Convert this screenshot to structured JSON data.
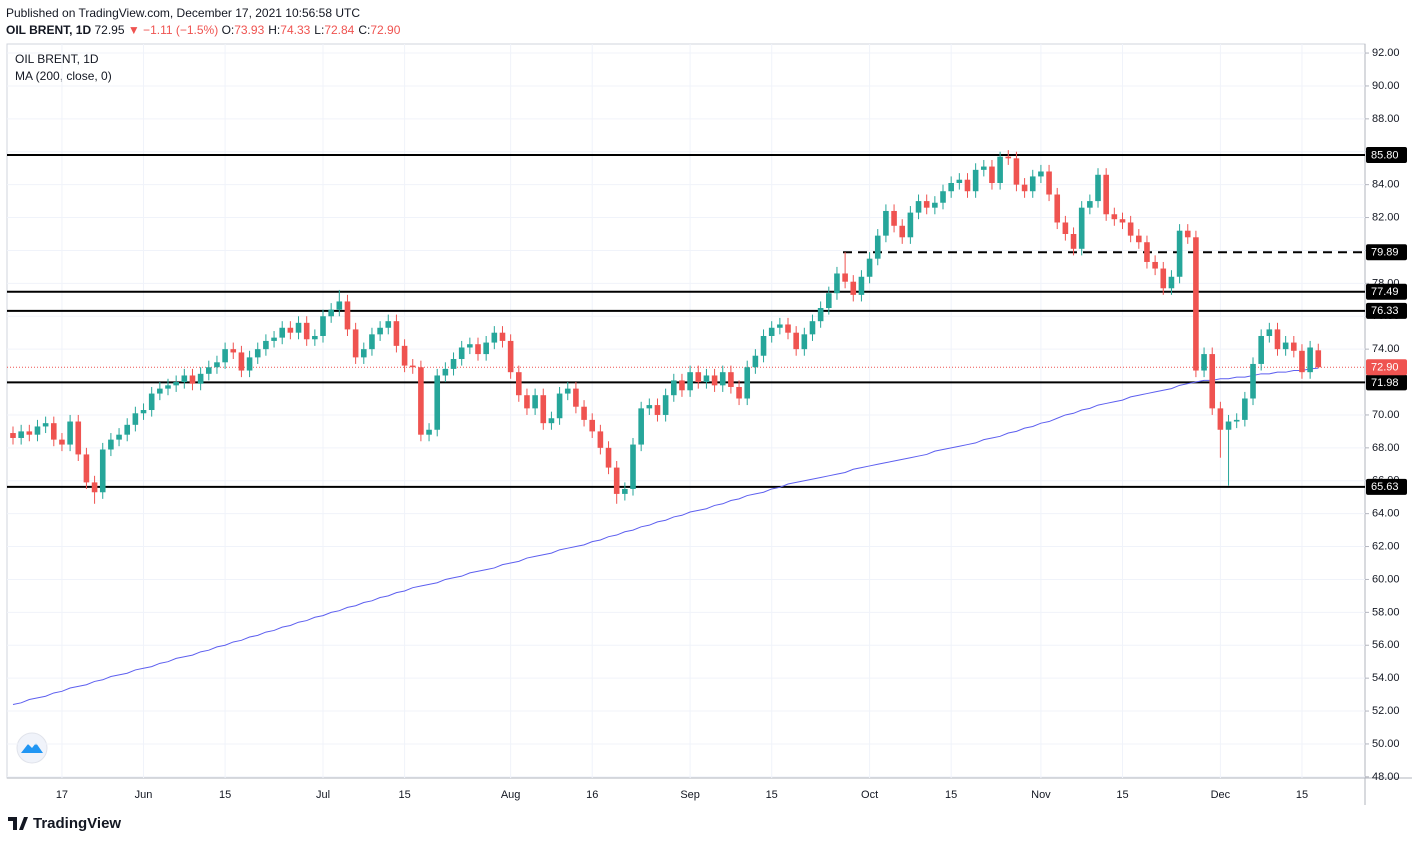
{
  "publisher": "Published on TradingView.com, December 17, 2021 10:56:58 UTC",
  "legend": {
    "price": "72.95",
    "change": "▼ −1.11 (−1.5%)",
    "items": [
      {
        "key": "O:",
        "value": "73.93"
      },
      {
        "key": "H:",
        "value": "74.33"
      },
      {
        "key": "L:",
        "value": "72.84"
      },
      {
        "key": "C:",
        "value": "72.90"
      }
    ]
  },
  "footer": "TradingView",
  "chart_data": {
    "type": "candlestick",
    "title": "OIL BRENT, 1D",
    "up_color": "#26a69a",
    "down_color": "#ef5350",
    "categories": [
      null,
      null,
      null,
      null,
      null,
      null,
      "17",
      null,
      null,
      null,
      null,
      null,
      null,
      null,
      null,
      null,
      "Jun",
      null,
      null,
      null,
      null,
      null,
      null,
      null,
      null,
      null,
      "15",
      null,
      null,
      null,
      null,
      null,
      null,
      null,
      null,
      null,
      null,
      null,
      "Jul",
      null,
      null,
      null,
      null,
      null,
      null,
      null,
      null,
      null,
      "15",
      null,
      null,
      null,
      null,
      null,
      null,
      null,
      null,
      null,
      null,
      null,
      null,
      "Aug",
      null,
      null,
      null,
      null,
      null,
      null,
      null,
      null,
      null,
      "16",
      null,
      null,
      null,
      null,
      null,
      null,
      null,
      null,
      null,
      null,
      null,
      "Sep",
      null,
      null,
      null,
      null,
      null,
      null,
      null,
      null,
      null,
      "15",
      null,
      null,
      null,
      null,
      null,
      null,
      null,
      null,
      null,
      null,
      null,
      "Oct",
      null,
      null,
      null,
      null,
      null,
      null,
      null,
      null,
      null,
      "15",
      null,
      null,
      null,
      null,
      null,
      null,
      null,
      null,
      null,
      null,
      "Nov",
      null,
      null,
      null,
      null,
      null,
      null,
      null,
      null,
      null,
      "15",
      null,
      null,
      null,
      null,
      null,
      null,
      null,
      null,
      null,
      null,
      null,
      "Dec",
      null,
      null,
      null,
      null,
      null,
      null,
      null,
      null,
      null,
      "15",
      null,
      null
    ],
    "open": [
      68.9,
      68.6,
      69.0,
      68.8,
      69.3,
      69.5,
      68.5,
      68.2,
      69.6,
      67.6,
      65.9,
      65.3,
      67.9,
      68.5,
      68.8,
      69.4,
      70.1,
      70.3,
      71.3,
      71.6,
      71.8,
      72.0,
      72.4,
      71.9,
      72.5,
      72.9,
      73.2,
      74.0,
      73.8,
      72.7,
      73.5,
      74.0,
      74.5,
      74.7,
      75.3,
      75.0,
      75.6,
      74.6,
      74.8,
      76.0,
      76.4,
      76.9,
      75.2,
      73.5,
      74.0,
      74.9,
      75.3,
      75.7,
      74.2,
      73.0,
      72.9,
      68.8,
      69.1,
      72.4,
      72.8,
      73.4,
      74.1,
      74.3,
      73.7,
      74.4,
      75.0,
      74.5,
      72.6,
      71.2,
      70.4,
      71.2,
      69.5,
      69.8,
      71.3,
      71.6,
      70.5,
      69.7,
      69.0,
      68.0,
      66.8,
      65.2,
      65.5,
      68.2,
      70.4,
      70.6,
      70.0,
      71.2,
      72.1,
      71.5,
      72.6,
      72.0,
      72.4,
      71.8,
      72.6,
      71.7,
      71.0,
      72.9,
      73.6,
      74.8,
      75.3,
      75.5,
      75.0,
      74.0,
      74.9,
      75.7,
      76.5,
      77.4,
      78.6,
      78.1,
      77.3,
      78.4,
      79.5,
      80.9,
      82.4,
      81.5,
      80.8,
      82.3,
      83.0,
      82.6,
      82.9,
      83.6,
      84.1,
      84.3,
      83.6,
      84.9,
      85.1,
      84.1,
      85.7,
      85.6,
      84.0,
      83.6,
      84.5,
      84.8,
      83.4,
      81.7,
      81.0,
      80.1,
      82.6,
      83.0,
      84.6,
      82.2,
      81.9,
      81.7,
      80.9,
      80.5,
      79.3,
      78.9,
      77.7,
      78.4,
      81.2,
      80.8,
      72.7,
      73.7,
      70.4,
      69.1,
      69.6,
      69.7,
      71.0,
      73.1,
      74.8,
      75.2,
      74.0,
      74.4,
      73.9,
      72.6,
      73.93
    ],
    "high": [
      69.3,
      69.4,
      69.4,
      69.7,
      69.9,
      69.9,
      68.9,
      70.0,
      70.0,
      68.0,
      66.3,
      68.3,
      68.9,
      69.2,
      69.8,
      70.5,
      70.7,
      71.7,
      72.0,
      72.2,
      72.4,
      72.8,
      72.8,
      72.9,
      73.3,
      73.6,
      74.4,
      74.4,
      74.2,
      73.9,
      74.4,
      74.9,
      75.1,
      75.7,
      75.7,
      76.0,
      76.0,
      75.2,
      76.4,
      76.8,
      77.6,
      77.3,
      75.6,
      74.4,
      75.3,
      75.7,
      76.1,
      76.1,
      74.6,
      73.4,
      73.3,
      69.5,
      72.8,
      73.2,
      73.8,
      74.5,
      74.7,
      74.7,
      74.8,
      75.4,
      75.4,
      74.9,
      73.0,
      71.6,
      71.6,
      71.6,
      70.2,
      71.7,
      72.0,
      72.0,
      70.9,
      70.1,
      69.4,
      68.4,
      67.2,
      65.9,
      68.6,
      70.8,
      71.0,
      71.0,
      71.6,
      72.5,
      72.5,
      73.0,
      73.0,
      72.8,
      72.8,
      73.0,
      73.0,
      72.1,
      73.3,
      74.0,
      75.2,
      75.7,
      75.9,
      75.9,
      75.4,
      75.3,
      76.1,
      76.9,
      77.8,
      79.0,
      79.9,
      78.5,
      78.8,
      79.9,
      81.3,
      82.8,
      82.8,
      81.9,
      82.7,
      83.4,
      83.4,
      83.3,
      84.0,
      84.5,
      84.7,
      84.7,
      85.3,
      85.5,
      85.5,
      86.0,
      86.1,
      86.0,
      84.4,
      84.9,
      85.2,
      85.2,
      83.8,
      82.1,
      81.4,
      83.0,
      83.4,
      85.0,
      85.0,
      82.6,
      82.3,
      82.1,
      81.3,
      80.9,
      79.7,
      79.3,
      78.8,
      81.6,
      81.6,
      81.2,
      74.1,
      74.1,
      70.8,
      70.0,
      70.1,
      71.4,
      73.5,
      75.2,
      75.6,
      75.6,
      74.8,
      74.8,
      74.3,
      74.5,
      74.33
    ],
    "low": [
      68.2,
      68.2,
      68.4,
      68.4,
      68.9,
      68.1,
      67.8,
      67.8,
      67.2,
      65.5,
      64.6,
      64.9,
      67.5,
      68.1,
      68.4,
      69.0,
      69.7,
      69.9,
      70.9,
      71.2,
      71.4,
      71.6,
      71.5,
      71.5,
      72.1,
      72.5,
      72.8,
      73.4,
      72.3,
      72.3,
      73.1,
      73.6,
      74.1,
      74.3,
      74.6,
      74.6,
      74.2,
      74.2,
      74.4,
      75.6,
      76.0,
      74.8,
      73.1,
      73.1,
      73.6,
      74.5,
      74.9,
      73.8,
      72.6,
      72.5,
      68.4,
      68.4,
      68.7,
      72.0,
      72.4,
      73.0,
      73.7,
      73.3,
      73.3,
      74.0,
      74.1,
      72.2,
      70.8,
      70.0,
      70.0,
      69.1,
      69.1,
      69.4,
      70.9,
      70.1,
      69.3,
      68.6,
      67.6,
      66.4,
      64.6,
      64.8,
      65.1,
      67.8,
      70.0,
      69.6,
      69.6,
      70.8,
      71.1,
      71.1,
      71.6,
      71.6,
      71.4,
      71.4,
      71.3,
      70.6,
      70.6,
      72.5,
      73.2,
      74.4,
      74.9,
      74.6,
      73.6,
      73.6,
      74.5,
      75.3,
      76.1,
      77.0,
      77.7,
      76.9,
      76.9,
      78.0,
      79.1,
      80.5,
      81.1,
      80.4,
      80.4,
      81.9,
      82.2,
      82.2,
      82.5,
      83.2,
      83.7,
      83.2,
      83.2,
      84.5,
      83.7,
      83.7,
      85.2,
      83.6,
      83.2,
      83.2,
      84.1,
      83.0,
      81.3,
      80.6,
      79.7,
      79.7,
      82.2,
      82.6,
      81.8,
      81.5,
      81.3,
      80.5,
      80.1,
      78.9,
      78.5,
      77.3,
      77.3,
      78.0,
      80.4,
      72.3,
      72.3,
      70.0,
      67.4,
      65.7,
      69.2,
      69.3,
      70.6,
      72.7,
      74.4,
      73.6,
      73.6,
      73.5,
      72.2,
      72.2,
      72.84
    ],
    "close": [
      68.6,
      69.0,
      68.8,
      69.3,
      69.5,
      68.5,
      68.2,
      69.6,
      67.6,
      65.9,
      65.3,
      67.9,
      68.5,
      68.8,
      69.4,
      70.1,
      70.3,
      71.3,
      71.6,
      71.8,
      72.0,
      72.4,
      71.9,
      72.5,
      72.9,
      73.2,
      74.0,
      73.8,
      72.7,
      73.5,
      74.0,
      74.5,
      74.7,
      75.3,
      75.0,
      75.6,
      74.6,
      74.8,
      76.0,
      76.4,
      76.9,
      75.2,
      73.5,
      74.0,
      74.9,
      75.3,
      75.7,
      74.2,
      73.0,
      72.9,
      68.8,
      69.1,
      72.4,
      72.8,
      73.4,
      74.1,
      74.3,
      73.7,
      74.4,
      75.0,
      74.5,
      72.6,
      71.2,
      70.4,
      71.2,
      69.5,
      69.8,
      71.3,
      71.6,
      70.5,
      69.7,
      69.0,
      68.0,
      66.8,
      65.2,
      65.5,
      68.2,
      70.4,
      70.6,
      70.0,
      71.2,
      72.1,
      71.5,
      72.6,
      72.0,
      72.4,
      71.8,
      72.6,
      71.7,
      71.0,
      72.9,
      73.6,
      74.8,
      75.3,
      75.5,
      75.0,
      74.0,
      74.9,
      75.7,
      76.5,
      77.4,
      78.6,
      78.1,
      77.3,
      78.4,
      79.5,
      80.9,
      82.4,
      81.5,
      80.8,
      82.3,
      83.0,
      82.6,
      82.9,
      83.6,
      84.1,
      84.3,
      83.6,
      84.9,
      85.1,
      84.1,
      85.7,
      85.6,
      84.0,
      83.6,
      84.5,
      84.8,
      83.4,
      81.7,
      81.0,
      80.1,
      82.6,
      83.0,
      84.6,
      82.2,
      81.9,
      81.7,
      80.9,
      80.5,
      79.3,
      78.9,
      77.7,
      78.4,
      81.2,
      80.8,
      72.7,
      73.7,
      70.4,
      69.1,
      69.6,
      69.7,
      71.0,
      73.1,
      74.8,
      75.2,
      74.0,
      74.4,
      73.9,
      72.6,
      74.1,
      72.9
    ],
    "series": [
      {
        "name": "MA (200, close, 0)",
        "color": "#5d5fef",
        "values": [
          52.4,
          52.5,
          52.7,
          52.8,
          52.9,
          53.1,
          53.2,
          53.4,
          53.5,
          53.6,
          53.8,
          53.9,
          54.1,
          54.2,
          54.3,
          54.5,
          54.6,
          54.7,
          54.9,
          55.0,
          55.2,
          55.3,
          55.4,
          55.6,
          55.7,
          55.9,
          56.0,
          56.2,
          56.3,
          56.5,
          56.6,
          56.8,
          56.9,
          57.1,
          57.2,
          57.4,
          57.5,
          57.7,
          57.8,
          58.0,
          58.1,
          58.3,
          58.4,
          58.6,
          58.7,
          58.9,
          59.0,
          59.2,
          59.3,
          59.5,
          59.6,
          59.7,
          59.8,
          60.0,
          60.1,
          60.2,
          60.4,
          60.5,
          60.6,
          60.7,
          60.9,
          61.0,
          61.1,
          61.3,
          61.4,
          61.5,
          61.6,
          61.8,
          61.9,
          62.0,
          62.1,
          62.3,
          62.4,
          62.6,
          62.7,
          62.9,
          63.0,
          63.2,
          63.3,
          63.5,
          63.6,
          63.8,
          63.9,
          64.1,
          64.2,
          64.3,
          64.5,
          64.6,
          64.8,
          64.9,
          65.1,
          65.2,
          65.3,
          65.5,
          65.6,
          65.8,
          65.9,
          66.0,
          66.1,
          66.2,
          66.3,
          66.4,
          66.5,
          66.7,
          66.8,
          66.9,
          67.0,
          67.1,
          67.2,
          67.3,
          67.4,
          67.5,
          67.6,
          67.8,
          67.9,
          68.0,
          68.1,
          68.2,
          68.3,
          68.5,
          68.6,
          68.7,
          68.9,
          69.0,
          69.2,
          69.3,
          69.5,
          69.6,
          69.8,
          70.0,
          70.1,
          70.3,
          70.4,
          70.6,
          70.7,
          70.8,
          70.9,
          71.1,
          71.2,
          71.3,
          71.4,
          71.5,
          71.6,
          71.8,
          71.9,
          72.0,
          72.1,
          72.1,
          72.2,
          72.2,
          72.3,
          72.3,
          72.4,
          72.5,
          72.5,
          72.6,
          72.6,
          72.7,
          72.7,
          72.8,
          72.85
        ]
      }
    ],
    "ylim": [
      47.93,
      92.55
    ],
    "yticks": [
      {
        "value": 48,
        "label": "48.00"
      },
      {
        "value": 50,
        "label": "50.00"
      },
      {
        "value": 52,
        "label": "52.00"
      },
      {
        "value": 54,
        "label": "54.00"
      },
      {
        "value": 56,
        "label": "56.00"
      },
      {
        "value": 58,
        "label": "58.00"
      },
      {
        "value": 60,
        "label": "60.00"
      },
      {
        "value": 62,
        "label": "62.00"
      },
      {
        "value": 64,
        "label": "64.00"
      },
      {
        "value": 66,
        "label": "66.00"
      },
      {
        "value": 68,
        "label": "68.00"
      },
      {
        "value": 70,
        "label": "70.00"
      },
      {
        "value": 72,
        "label": "72.00"
      },
      {
        "value": 74,
        "label": "74.00"
      },
      {
        "value": 76,
        "label": "76.00"
      },
      {
        "value": 78,
        "label": "78.00"
      },
      {
        "value": 80,
        "label": "80.00"
      },
      {
        "value": 82,
        "label": "82.00"
      },
      {
        "value": 84,
        "label": "84.00"
      },
      {
        "value": 86,
        "label": "86.00"
      },
      {
        "value": 88,
        "label": "88.00"
      },
      {
        "value": 90,
        "label": "90.00"
      },
      {
        "value": 92,
        "label": "92.00"
      }
    ],
    "grid": true,
    "levels": [
      {
        "value": 85.8,
        "label": "85.80",
        "style": "solid"
      },
      {
        "value": 79.89,
        "label": "79.89",
        "style": "dashed"
      },
      {
        "value": 77.49,
        "label": "77.49",
        "style": "solid"
      },
      {
        "value": 76.33,
        "label": "76.33",
        "style": "solid"
      },
      {
        "value": 71.98,
        "label": "71.98",
        "style": "solid"
      },
      {
        "value": 65.63,
        "label": "65.63",
        "style": "solid"
      }
    ],
    "last_price": {
      "value": 72.9,
      "label": "72.90"
    }
  }
}
